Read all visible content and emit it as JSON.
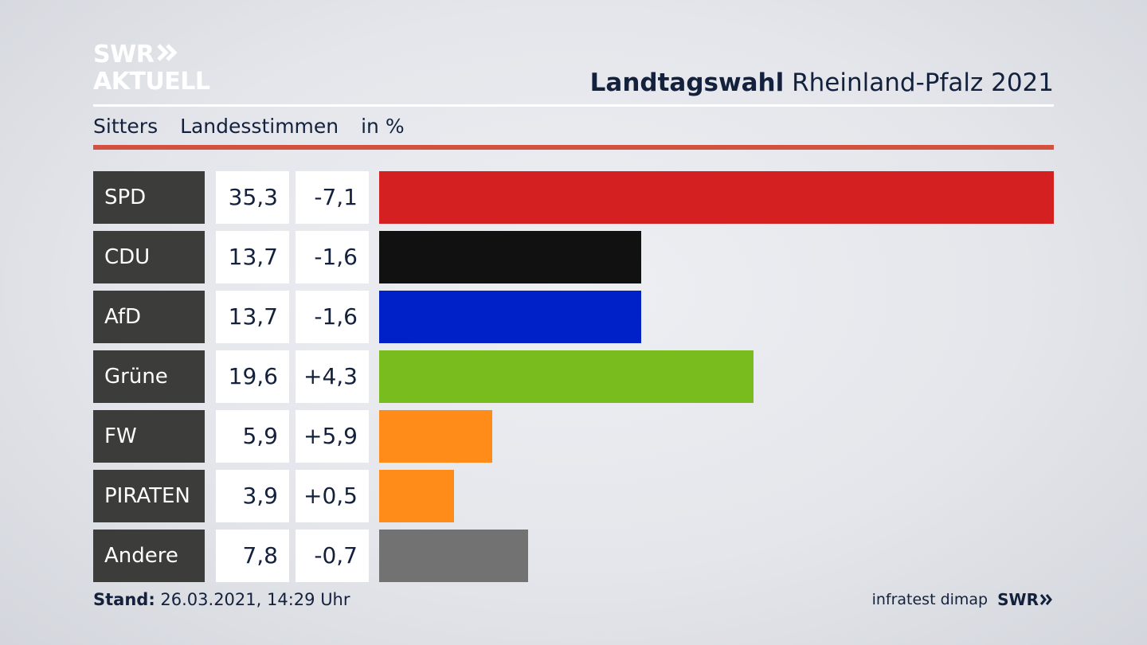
{
  "brand": {
    "logo_line1": "SWR",
    "logo_line2": "AKTUELL"
  },
  "header": {
    "title_bold": "Landtagswahl",
    "title_rest": "Rheinland-Pfalz 2021",
    "subtitle_location": "Sitters",
    "subtitle_measure": "Landesstimmen",
    "subtitle_unit": "in %"
  },
  "colors": {
    "accent_rule": "#d2523f"
  },
  "chart_data": {
    "type": "bar",
    "orientation": "horizontal",
    "categories": [
      "SPD",
      "CDU",
      "AfD",
      "Grüne",
      "FW",
      "PIRATEN",
      "Andere"
    ],
    "values": [
      35.3,
      13.7,
      13.7,
      19.6,
      5.9,
      3.9,
      7.8
    ],
    "value_labels": [
      "35,3",
      "13,7",
      "13,7",
      "19,6",
      "5,9",
      "3,9",
      "7,8"
    ],
    "change_values": [
      -7.1,
      -1.6,
      -1.6,
      4.3,
      5.9,
      0.5,
      -0.7
    ],
    "change_labels": [
      "-7,1",
      "-1,6",
      "-1,6",
      "+4,3",
      "+5,9",
      "+0,5",
      "-0,7"
    ],
    "colors": [
      "#d42020",
      "#111111",
      "#0021c8",
      "#78bc1e",
      "#ff8c19",
      "#ff8c19",
      "#727272"
    ]
  },
  "footer": {
    "stand_label": "Stand:",
    "stand_value": "26.03.2021, 14:29 Uhr",
    "source": "infratest dimap",
    "broadcaster": "SWR"
  }
}
